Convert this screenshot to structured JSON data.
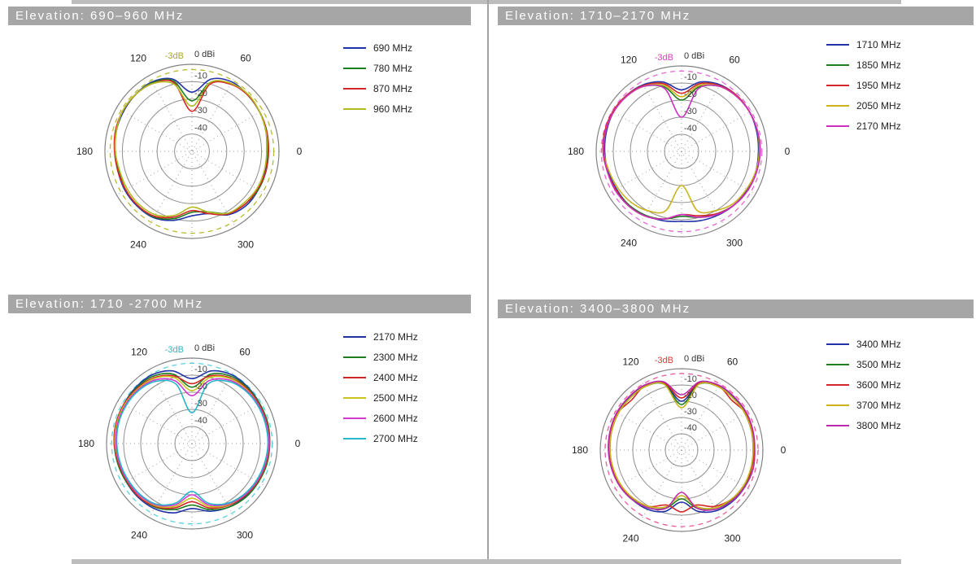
{
  "page": {
    "titlebar_color": "#a6a6a6",
    "divider_color": "#a3a3a3"
  },
  "chart_data": [
    {
      "type": "polar",
      "title": "Elevation: 690–960 MHz",
      "r_axis": {
        "unit_label": "0 dBi",
        "ticks": [
          -10,
          -20,
          -30,
          -40
        ],
        "min": -50,
        "max": 0
      },
      "angle_ticks_deg": [
        0,
        60,
        120,
        180,
        240,
        300
      ],
      "angle_step_deg": 15,
      "grid": true,
      "legend_position": "right",
      "ref_circle": {
        "label": "-3dB",
        "value_db": -3,
        "color": "#b9bb2f",
        "label_color": "#a9a928"
      },
      "series": [
        {
          "name": "690 MHz",
          "color": "#2133a6",
          "gains_dbi": [
            -7,
            -6,
            -5,
            -4.5,
            -4,
            -7,
            -16,
            -7,
            -4,
            -4,
            -4.5,
            -5,
            -6,
            -6,
            -5.5,
            -5.5,
            -6,
            -9,
            -13,
            -13,
            -8,
            -6,
            -6,
            -6.5
          ]
        },
        {
          "name": "780 MHz",
          "color": "#1e7d1e",
          "gains_dbi": [
            -6.5,
            -5.5,
            -5,
            -4.5,
            -5,
            -9,
            -21,
            -8,
            -4.5,
            -4,
            -4,
            -5,
            -6,
            -6.5,
            -6,
            -6,
            -6.5,
            -10,
            -15,
            -14,
            -9,
            -7,
            -6,
            -6
          ]
        },
        {
          "name": "870 MHz",
          "color": "#d42626",
          "gains_dbi": [
            -6,
            -5.5,
            -5,
            -4.5,
            -5.5,
            -10,
            -27,
            -9,
            -5,
            -4,
            -4,
            -4.5,
            -5.5,
            -6,
            -6,
            -6,
            -7,
            -11,
            -16,
            -13,
            -8.5,
            -7,
            -6.5,
            -6
          ]
        },
        {
          "name": "960 MHz",
          "color": "#b4bb22",
          "gains_dbi": [
            -7,
            -6,
            -5,
            -4,
            -5,
            -9,
            -24,
            -10,
            -5,
            -4,
            -4,
            -5,
            -6,
            -7,
            -7,
            -7,
            -8,
            -12,
            -18,
            -14,
            -9,
            -8,
            -7,
            -7
          ]
        }
      ]
    },
    {
      "type": "polar",
      "title": "Elevation: 1710–2170 MHz",
      "r_axis": {
        "unit_label": "0 dBi",
        "ticks": [
          -10,
          -20,
          -30,
          -40
        ],
        "min": -50,
        "max": 0
      },
      "angle_ticks_deg": [
        0,
        60,
        120,
        180,
        240,
        300
      ],
      "angle_step_deg": 15,
      "grid": true,
      "legend_position": "right",
      "ref_circle": {
        "label": "-3dB",
        "value_db": -3,
        "color": "#e766d9",
        "label_color": "#d93ec4"
      },
      "series": [
        {
          "name": "1710 MHz",
          "color": "#2133a6",
          "gains_dbi": [
            -5,
            -4.5,
            -4,
            -4,
            -5,
            -8,
            -14,
            -8,
            -5,
            -4,
            -4,
            -4.5,
            -5,
            -5.5,
            -6,
            -6,
            -7,
            -8,
            -9,
            -8,
            -7,
            -6,
            -5.5,
            -5
          ]
        },
        {
          "name": "1850 MHz",
          "color": "#1e7d1e",
          "gains_dbi": [
            -4.5,
            -4,
            -4,
            -4.5,
            -6,
            -11,
            -20,
            -11,
            -6,
            -4.5,
            -4,
            -4,
            -4.5,
            -5,
            -5.5,
            -6,
            -7,
            -9,
            -12,
            -10,
            -8,
            -6,
            -5,
            -4.5
          ]
        },
        {
          "name": "1950 MHz",
          "color": "#d42626",
          "gains_dbi": [
            -4,
            -4,
            -4,
            -4,
            -5.5,
            -9,
            -16,
            -9,
            -5.5,
            -4,
            -3.5,
            -3.5,
            -4,
            -5,
            -5.5,
            -5.5,
            -6.5,
            -9,
            -13,
            -11,
            -8,
            -6,
            -5,
            -4.5
          ]
        },
        {
          "name": "2050 MHz",
          "color": "#c9b41c",
          "gains_dbi": [
            -4.5,
            -4,
            -4,
            -4.5,
            -6,
            -10,
            -18,
            -10,
            -6,
            -4.5,
            -4,
            -4,
            -4.5,
            -6,
            -7,
            -8,
            -10,
            -14,
            -30,
            -14,
            -10,
            -7,
            -6,
            -5
          ]
        },
        {
          "name": "2170 MHz",
          "color": "#cb2fc0",
          "gains_dbi": [
            -4,
            -4,
            -4,
            -4.5,
            -6,
            -12,
            -30,
            -12,
            -6,
            -4.5,
            -4,
            -4,
            -4.5,
            -5,
            -5,
            -5.5,
            -6.5,
            -9,
            -13,
            -10,
            -7.5,
            -6,
            -5,
            -4.5
          ]
        }
      ]
    },
    {
      "type": "polar",
      "title": "Elevation: 1710 -2700 MHz",
      "r_axis": {
        "unit_label": "0 dBi",
        "ticks": [
          -10,
          -20,
          -30,
          -40
        ],
        "min": -50,
        "max": 0
      },
      "angle_ticks_deg": [
        0,
        60,
        120,
        180,
        240,
        300
      ],
      "angle_step_deg": 15,
      "grid": true,
      "legend_position": "right",
      "ref_circle": {
        "label": "-3dB",
        "value_db": -3,
        "color": "#58d3de",
        "label_color": "#2fb6c6"
      },
      "series": [
        {
          "name": "2170 MHz",
          "color": "#2133a6",
          "gains_dbi": [
            -5,
            -4.5,
            -4,
            -3.5,
            -3.5,
            -6,
            -12,
            -6,
            -3.5,
            -3.5,
            -4,
            -4.5,
            -5,
            -5.5,
            -5.5,
            -5.5,
            -6,
            -8,
            -12,
            -9,
            -7,
            -6,
            -5.5,
            -5
          ]
        },
        {
          "name": "2300 MHz",
          "color": "#1e7d1e",
          "gains_dbi": [
            -4.5,
            -4,
            -4,
            -4,
            -4.5,
            -8,
            -17,
            -8,
            -4.5,
            -4,
            -4,
            -4,
            -4.5,
            -5,
            -5.5,
            -6,
            -7,
            -10,
            -14,
            -10,
            -7,
            -5.5,
            -5,
            -4.5
          ]
        },
        {
          "name": "2400 MHz",
          "color": "#d42626",
          "gains_dbi": [
            -4.5,
            -4.5,
            -4.5,
            -4.5,
            -5.5,
            -9,
            -15,
            -9,
            -5.5,
            -4.5,
            -4,
            -4,
            -4.5,
            -5.5,
            -6,
            -6,
            -7.5,
            -11,
            -16,
            -11,
            -8,
            -6.5,
            -5.5,
            -5
          ]
        },
        {
          "name": "2500 MHz",
          "color": "#c9c41c",
          "gains_dbi": [
            -5,
            -5,
            -5,
            -5,
            -6,
            -10,
            -19,
            -10,
            -6,
            -5,
            -4.5,
            -4.5,
            -5,
            -6,
            -6.5,
            -7,
            -8,
            -12,
            -18,
            -12,
            -8.5,
            -7,
            -6,
            -5.5
          ]
        },
        {
          "name": "2600 MHz",
          "color": "#d03ad0",
          "gains_dbi": [
            -5,
            -5,
            -5,
            -5.5,
            -7,
            -12,
            -22,
            -12,
            -7,
            -5.5,
            -5,
            -5,
            -5.5,
            -6,
            -6.5,
            -7,
            -8.5,
            -13,
            -20,
            -13,
            -9,
            -7,
            -6,
            -5.5
          ]
        },
        {
          "name": "2700 MHz",
          "color": "#27b6c9",
          "gains_dbi": [
            -5.5,
            -5.5,
            -5.5,
            -6,
            -8,
            -14,
            -32,
            -14,
            -8,
            -6,
            -5.5,
            -5.5,
            -6,
            -6.5,
            -7,
            -7.5,
            -9,
            -14,
            -22,
            -14,
            -9.5,
            -7.5,
            -6.5,
            -6
          ]
        }
      ]
    },
    {
      "type": "polar",
      "title": "Elevation: 3400–3800 MHz",
      "r_axis": {
        "unit_label": "0 dBi",
        "ticks": [
          -10,
          -20,
          -30,
          -40
        ],
        "min": -50,
        "max": 0
      },
      "angle_ticks_deg": [
        0,
        60,
        120,
        180,
        240,
        300
      ],
      "angle_step_deg": 15,
      "grid": true,
      "legend_position": "right",
      "ref_circle": {
        "label": "-3dB",
        "value_db": -3,
        "color": "#ea5a9d",
        "label_color": "#d93a3a"
      },
      "series": [
        {
          "name": "3400 MHz",
          "color": "#2133a6",
          "gains_dbi": [
            -6,
            -5.5,
            -5,
            -4.5,
            -4.5,
            -7,
            -20,
            -7,
            -4.5,
            -4.5,
            -5,
            -5.5,
            -6,
            -6,
            -6,
            -7,
            -8,
            -11,
            -18,
            -11,
            -7,
            -5.5,
            -5,
            -5.5
          ]
        },
        {
          "name": "3500 MHz",
          "color": "#1e7d1e",
          "gains_dbi": [
            -5.5,
            -5,
            -4.5,
            -5,
            -5,
            -8,
            -22,
            -8,
            -5,
            -5,
            -4.5,
            -5,
            -5.5,
            -6,
            -6.5,
            -7.5,
            -9,
            -13,
            -20,
            -13,
            -8,
            -6.5,
            -5.5,
            -5.5
          ]
        },
        {
          "name": "3600 MHz",
          "color": "#d42626",
          "gains_dbi": [
            -5.5,
            -5,
            -4.5,
            -6.5,
            -4.5,
            -7,
            -18,
            -7,
            -4.5,
            -6.5,
            -4.5,
            -5,
            -5.5,
            -6,
            -6.5,
            -8,
            -10,
            -15,
            -12,
            -15,
            -10,
            -7,
            -6,
            -5.5
          ]
        },
        {
          "name": "3700 MHz",
          "color": "#c9b41c",
          "gains_dbi": [
            -6,
            -5.5,
            -5,
            -5,
            -5,
            -8,
            -24,
            -8,
            -5,
            -5,
            -5,
            -5.5,
            -6,
            -6.5,
            -7,
            -8,
            -10,
            -14,
            -22,
            -14,
            -9,
            -7,
            -6,
            -6
          ]
        },
        {
          "name": "3800 MHz",
          "color": "#bb2bb0",
          "gains_dbi": [
            -5,
            -4.5,
            -4,
            -4,
            -4,
            -6.5,
            -16,
            -6.5,
            -4,
            -4,
            -4,
            -4.5,
            -5,
            -5.5,
            -6,
            -7,
            -9,
            -13,
            -24,
            -13,
            -8,
            -6,
            -5,
            -4.5
          ]
        }
      ]
    }
  ]
}
